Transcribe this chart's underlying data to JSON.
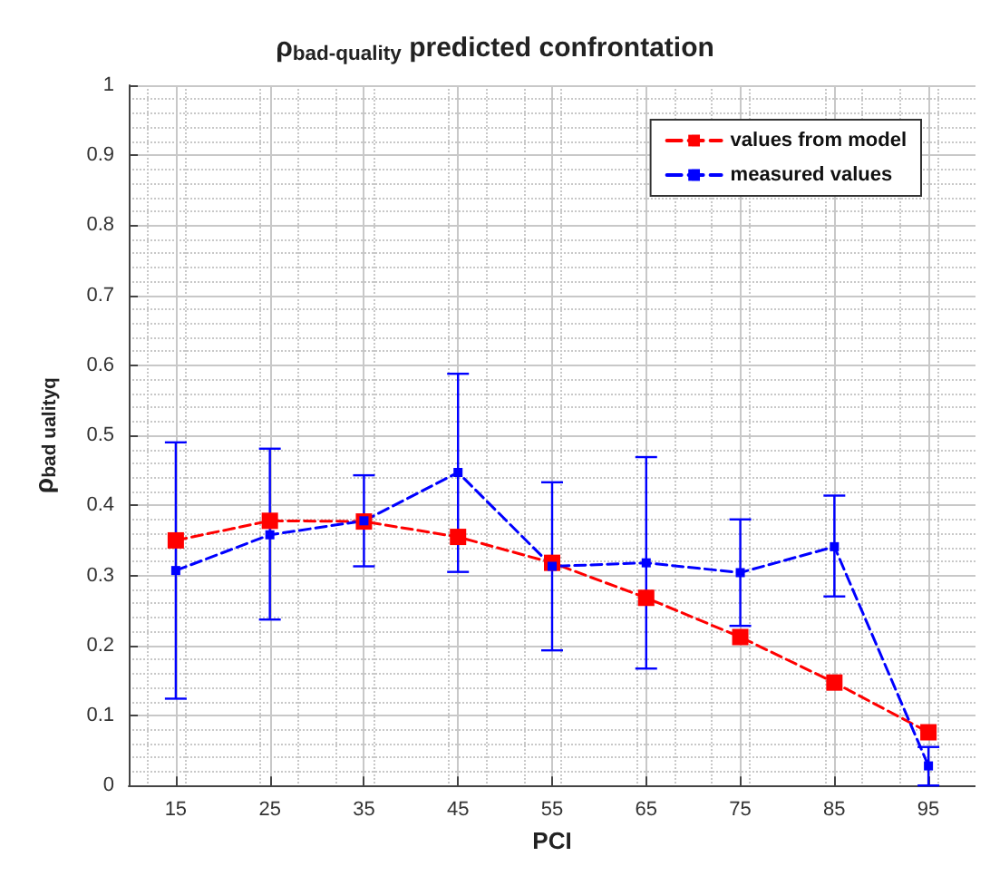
{
  "chart_data": {
    "type": "line",
    "title": "ρ$_{bad-quality}$ predicted confrontation",
    "xlabel": "PCI",
    "ylabel": "ρ$_{bad uality}$$_{q}$",
    "x": [
      15,
      25,
      35,
      45,
      55,
      65,
      75,
      85,
      95
    ],
    "series": [
      {
        "name": "values from model",
        "color": "#ff0000",
        "values": [
          0.35,
          0.378,
          0.377,
          0.355,
          0.318,
          0.268,
          0.212,
          0.147,
          0.076
        ]
      },
      {
        "name": "measured values",
        "color": "#0000ff",
        "values": [
          0.307,
          0.358,
          0.378,
          0.447,
          0.313,
          0.318,
          0.304,
          0.341,
          0.028
        ],
        "errors": [
          [
            0.124,
            0.49
          ],
          [
            0.237,
            0.481
          ],
          [
            0.313,
            0.443
          ],
          [
            0.305,
            0.588
          ],
          [
            0.193,
            0.433
          ],
          [
            0.167,
            0.469
          ],
          [
            0.228,
            0.38
          ],
          [
            0.27,
            0.414
          ],
          [
            0,
            0.055
          ]
        ]
      }
    ],
    "xlim": [
      10,
      100
    ],
    "xticks": [
      15,
      25,
      35,
      45,
      55,
      65,
      75,
      85,
      95
    ],
    "ylim": [
      0,
      1
    ],
    "yticks": [
      0,
      0.1,
      0.2,
      0.3,
      0.4,
      0.5,
      0.6,
      0.7,
      0.8,
      0.9,
      1
    ],
    "grid": true,
    "legend": "top right",
    "marker": "square",
    "line_style": "dashed"
  }
}
